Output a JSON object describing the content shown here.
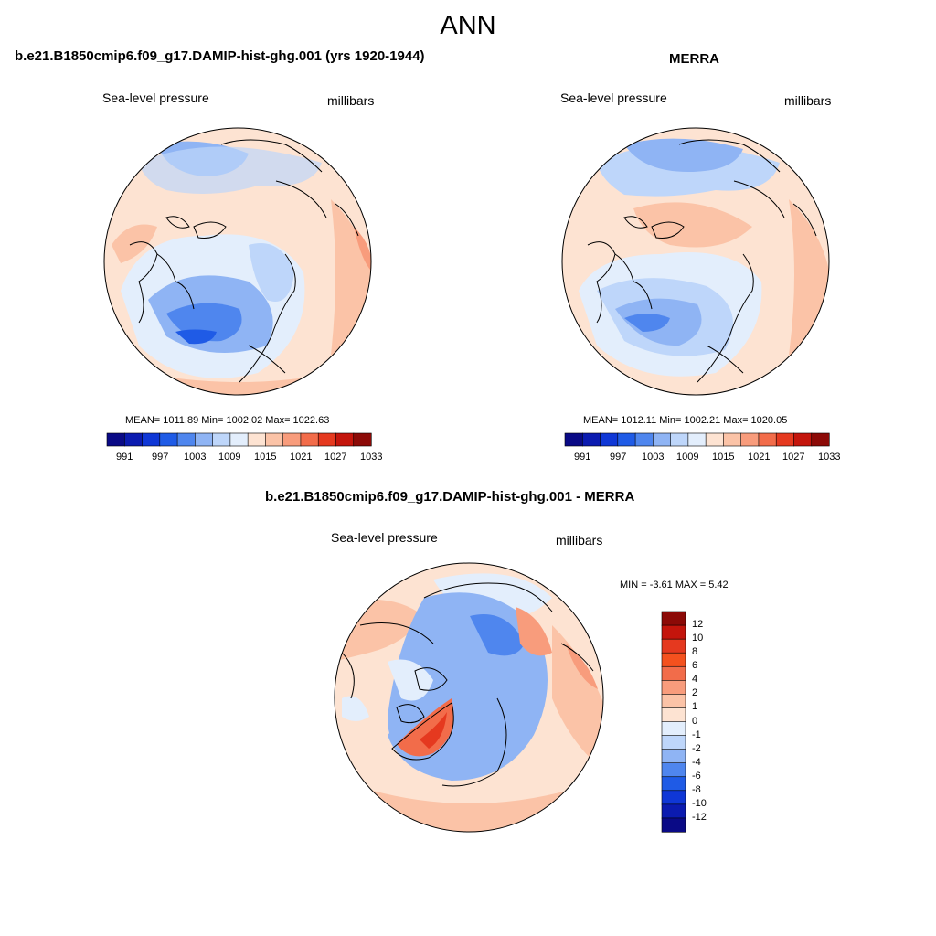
{
  "figure": {
    "title": "ANN"
  },
  "colors": {
    "scale": [
      "#0a0a86",
      "#0b1bb0",
      "#0f37d6",
      "#1f5be6",
      "#4f86ee",
      "#8fb4f4",
      "#bed6fa",
      "#e3eefc",
      "#fde3d2",
      "#fbc3a7",
      "#f89c7c",
      "#f26c4a",
      "#e5391f",
      "#c4150c",
      "#8c0a07"
    ],
    "land_line": "#000000"
  },
  "chart_data": [
    {
      "type": "heatmap",
      "projection": "north polar stereographic",
      "title": "b.e21.B1850cmip6.f09_g17.DAMIP-hist-ghg.001 (yrs 1920-1944)",
      "variable": "Sea-level pressure",
      "units": "millibars",
      "stats_text": "MEAN= 1011.89  Min= 1002.02  Max= 1022.63",
      "stats": {
        "mean": 1011.89,
        "min": 1002.02,
        "max": 1022.63
      },
      "colorbar": {
        "orientation": "horizontal",
        "levels": [
          991,
          994,
          997,
          1000,
          1003,
          1006,
          1009,
          1012,
          1015,
          1018,
          1021,
          1024,
          1027,
          1030,
          1033,
          1036
        ],
        "tick_labels": [
          "991",
          "997",
          "1003",
          "1009",
          "1015",
          "1021",
          "1027",
          "1033"
        ]
      }
    },
    {
      "type": "heatmap",
      "projection": "north polar stereographic",
      "title": "MERRA",
      "variable": "Sea-level pressure",
      "units": "millibars",
      "stats_text": "MEAN= 1012.11  Min= 1002.21  Max= 1020.05",
      "stats": {
        "mean": 1012.11,
        "min": 1002.21,
        "max": 1020.05
      },
      "colorbar": {
        "orientation": "horizontal",
        "levels": [
          991,
          994,
          997,
          1000,
          1003,
          1006,
          1009,
          1012,
          1015,
          1018,
          1021,
          1024,
          1027,
          1030,
          1033,
          1036
        ],
        "tick_labels": [
          "991",
          "997",
          "1003",
          "1009",
          "1015",
          "1021",
          "1027",
          "1033"
        ]
      }
    },
    {
      "type": "heatmap",
      "projection": "north polar stereographic",
      "title": "b.e21.B1850cmip6.f09_g17.DAMIP-hist-ghg.001 - MERRA",
      "variable": "Sea-level pressure",
      "units": "millibars",
      "stats_text": "MIN =  -3.61 MAX =   5.42",
      "stats": {
        "min": -3.61,
        "max": 5.42
      },
      "colorbar": {
        "orientation": "vertical",
        "tick_labels": [
          "12",
          "10",
          "8",
          "6",
          "4",
          "2",
          "1",
          "0",
          "-1",
          "-2",
          "-4",
          "-6",
          "-8",
          "-10",
          "-12"
        ]
      }
    }
  ]
}
